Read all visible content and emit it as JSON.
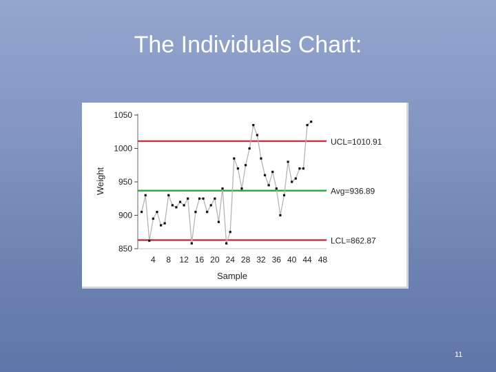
{
  "slide": {
    "title": "The Individuals Chart:",
    "page_number": "11"
  },
  "colors": {
    "background_top": "#94a6cd",
    "background_bottom": "#5f76a8",
    "data_line": "#b4b4b4",
    "data_point": "#111111",
    "ucl_line": "#cc3344",
    "avg_line": "#2faa44",
    "lcl_line": "#cc3344"
  },
  "chart_data": {
    "type": "line",
    "title": "",
    "xlabel": "Sample",
    "ylabel": "Weight",
    "xlim": [
      0,
      49
    ],
    "ylim": [
      850,
      1050
    ],
    "x_ticks": [
      4,
      8,
      12,
      16,
      20,
      24,
      28,
      32,
      36,
      40,
      44,
      48
    ],
    "y_ticks": [
      850,
      900,
      950,
      1000,
      1050
    ],
    "grid": false,
    "limits": [
      {
        "key": "ucl",
        "label": "UCL=1010.91",
        "value": 1010.91
      },
      {
        "key": "avg",
        "label": "Avg=936.89",
        "value": 936.89
      },
      {
        "key": "lcl",
        "label": "LCL=862.87",
        "value": 862.87
      }
    ],
    "series": [
      {
        "x": [
          1,
          2,
          3,
          4,
          5,
          6,
          7,
          8,
          9,
          10,
          11,
          12,
          13,
          14,
          15,
          16,
          17,
          18,
          19,
          20,
          21,
          22,
          23,
          24,
          25,
          26,
          27,
          28,
          29,
          30,
          31,
          32,
          33,
          34,
          35,
          36,
          37,
          38,
          39,
          40,
          41,
          42,
          43,
          44,
          45
        ],
        "values": [
          905,
          930,
          862,
          895,
          905,
          885,
          888,
          930,
          915,
          912,
          920,
          915,
          925,
          858,
          905,
          925,
          925,
          905,
          915,
          925,
          890,
          940,
          858,
          875,
          985,
          970,
          940,
          975,
          1000,
          1035,
          1020,
          985,
          960,
          945,
          965,
          940,
          900,
          930,
          980,
          950,
          955,
          970,
          970,
          1035,
          1040
        ]
      }
    ]
  }
}
